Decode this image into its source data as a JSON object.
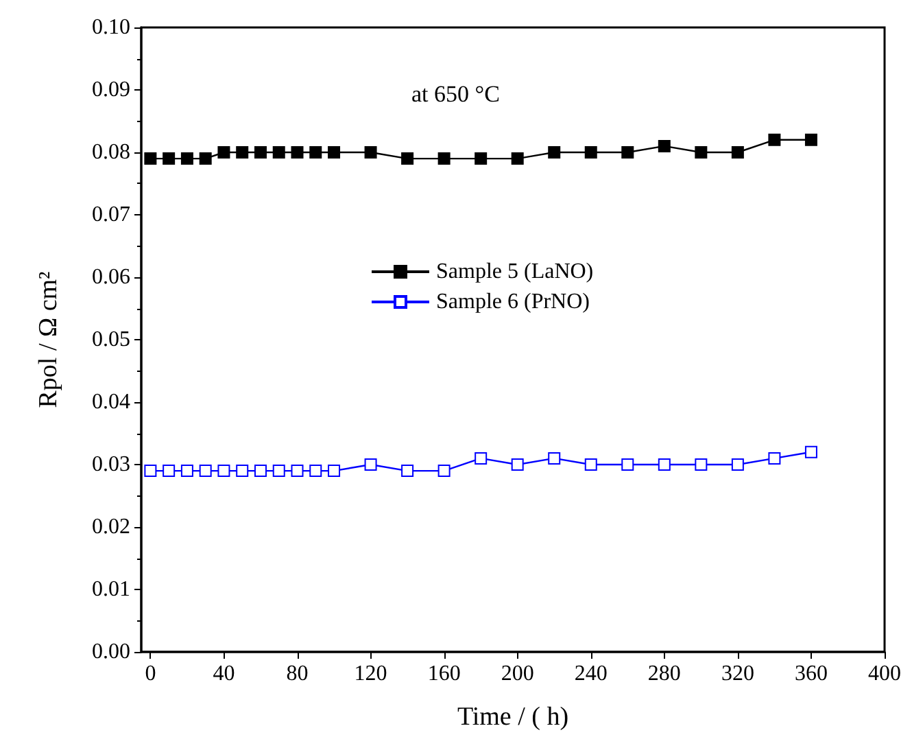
{
  "chart_data": {
    "type": "line",
    "xlabel": "Time / ( h)",
    "ylabel": "Rpol / Ω cm²",
    "annotations": [
      "at 650 °C"
    ],
    "x": [
      0,
      10,
      20,
      30,
      40,
      50,
      60,
      70,
      80,
      90,
      100,
      120,
      140,
      160,
      180,
      200,
      220,
      240,
      260,
      280,
      300,
      320,
      340,
      360
    ],
    "series": [
      {
        "name": "Sample 5 (LaNO)",
        "color": "#000000",
        "marker": "square",
        "values": [
          0.079,
          0.079,
          0.079,
          0.079,
          0.08,
          0.08,
          0.08,
          0.08,
          0.08,
          0.08,
          0.08,
          0.08,
          0.079,
          0.079,
          0.079,
          0.079,
          0.08,
          0.08,
          0.08,
          0.081,
          0.08,
          0.08,
          0.082,
          0.082
        ]
      },
      {
        "name": "Sample 6 (PrNO)",
        "color": "#0000ff",
        "marker": "square",
        "values": [
          0.029,
          0.029,
          0.029,
          0.029,
          0.029,
          0.029,
          0.029,
          0.029,
          0.029,
          0.029,
          0.029,
          0.03,
          0.029,
          0.029,
          0.031,
          0.03,
          0.031,
          0.03,
          0.03,
          0.03,
          0.03,
          0.03,
          0.031,
          0.032
        ]
      }
    ],
    "xlim": [
      -5,
      400
    ],
    "xticks": [
      0,
      40,
      80,
      120,
      160,
      200,
      240,
      280,
      320,
      360,
      400
    ],
    "ylim": [
      0,
      0.1
    ],
    "yticks": [
      {
        "value": 0,
        "label": "0.00"
      },
      {
        "value": 0.01,
        "label": "0.01"
      },
      {
        "value": 0.02,
        "label": "0.02"
      },
      {
        "value": 0.03,
        "label": "0.03"
      },
      {
        "value": 0.04,
        "label": "0.04"
      },
      {
        "value": 0.05,
        "label": "0.05"
      },
      {
        "value": 0.06,
        "label": "0.06"
      },
      {
        "value": 0.07,
        "label": "0.07"
      },
      {
        "value": 0.08,
        "label": "0.08"
      },
      {
        "value": 0.09,
        "label": "0.09"
      },
      {
        "value": 0.1,
        "label": "0.10"
      }
    ],
    "grid": false,
    "legend": "center",
    "line_style": "solid"
  }
}
